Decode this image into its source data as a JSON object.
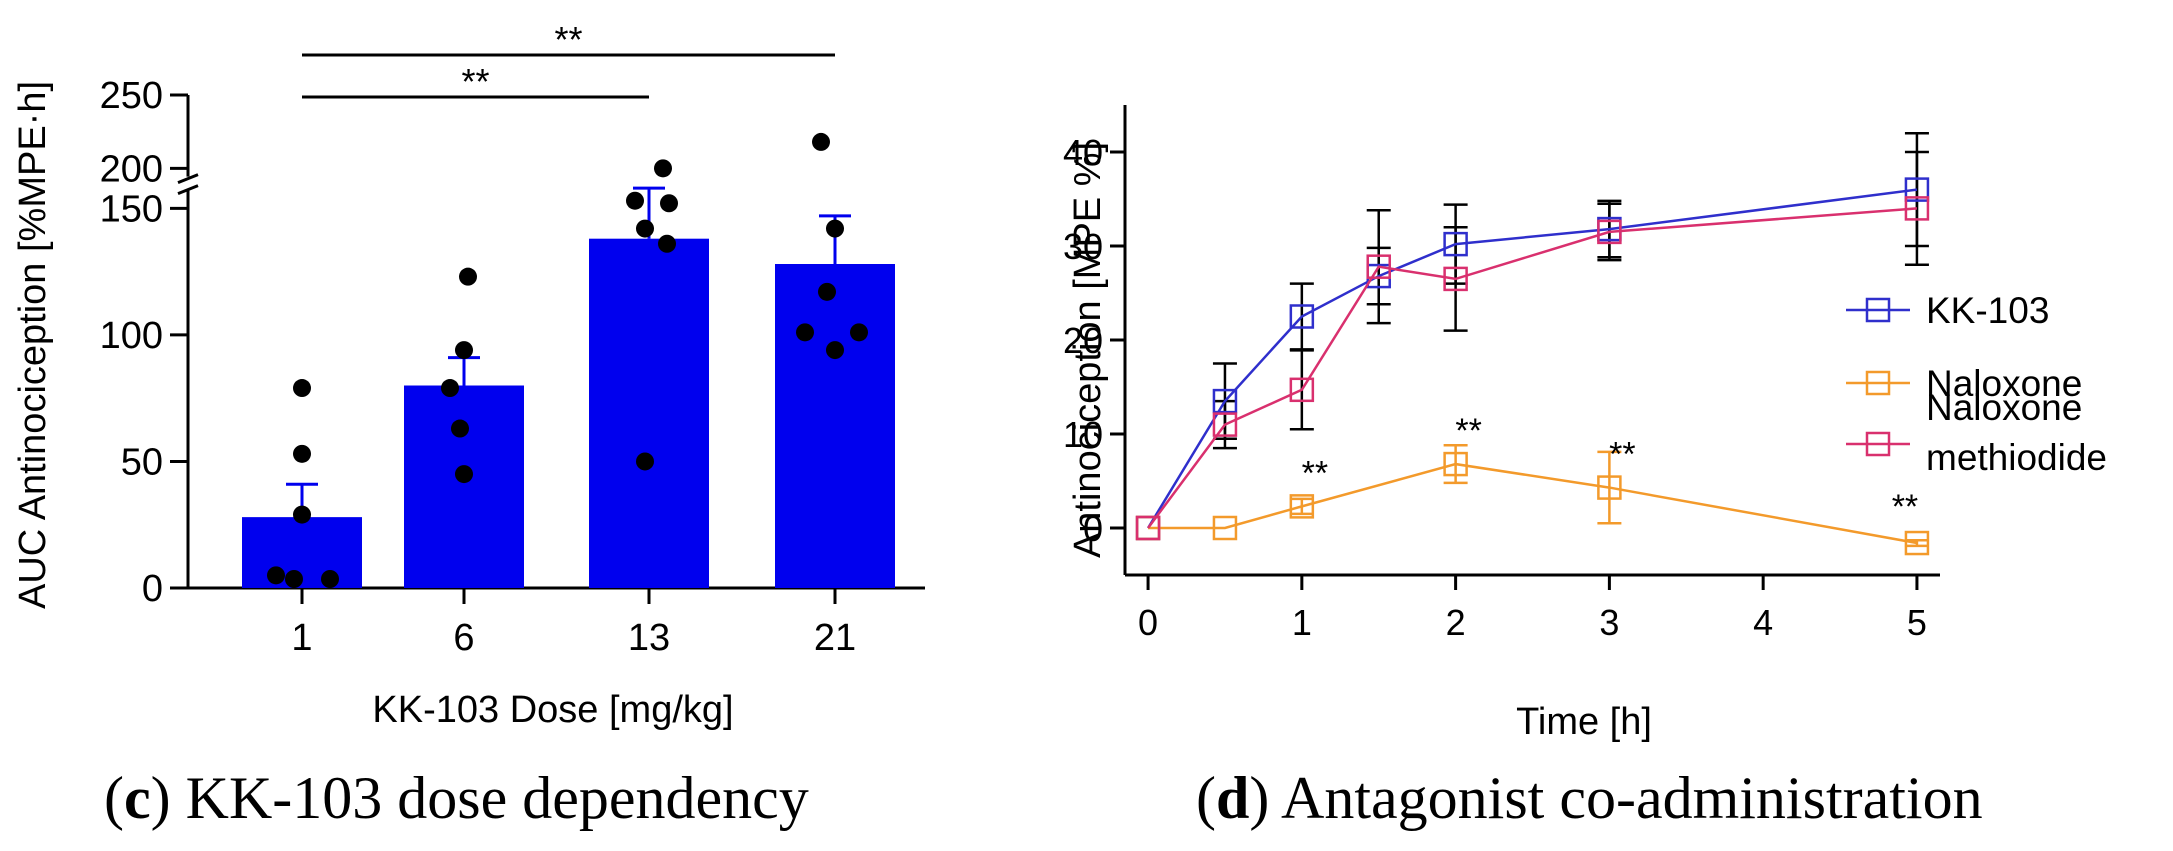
{
  "chart_data": [
    {
      "type": "bar",
      "title": "",
      "xlabel": "KK-103 Dose [mg/kg]",
      "ylabel": "AUC Antinociception [%MPE·h]",
      "categories": [
        "1",
        "6",
        "13",
        "21"
      ],
      "values": [
        28,
        80,
        138,
        128
      ],
      "error_upper": [
        41,
        91,
        158,
        147
      ],
      "points": [
        [
          79,
          53,
          29,
          5,
          1,
          1
        ],
        [
          123,
          94,
          79,
          63,
          45
        ],
        [
          200,
          153,
          152,
          142,
          136,
          50
        ],
        [
          218,
          142,
          117,
          101,
          101,
          94
        ]
      ],
      "y_ticks_lower": [
        0,
        50,
        100,
        150
      ],
      "y_ticks_upper": [
        200,
        250
      ],
      "y_tick_labels": [
        "0",
        "50",
        "100",
        "150",
        "200",
        "250"
      ],
      "ylim": [
        0,
        250
      ],
      "axis_break": [
        160,
        190
      ],
      "bar_color": "#0000ee",
      "significance": [
        {
          "from": "1",
          "to": "13",
          "label": "**"
        },
        {
          "from": "1",
          "to": "21",
          "label": "**"
        }
      ],
      "caption": {
        "letter": "c",
        "text": "KK-103 dose dependency"
      }
    },
    {
      "type": "line",
      "title": "",
      "xlabel": "Time [h]",
      "ylabel": "Antinociception [MPE %]",
      "xlim": [
        -0.15,
        5.15
      ],
      "ylim": [
        -5,
        45
      ],
      "x_ticks": [
        0,
        1,
        2,
        3,
        4,
        5
      ],
      "y_ticks": [
        0,
        10,
        20,
        30,
        40
      ],
      "series": [
        {
          "name": "KK-103",
          "color": "#2f2fcc",
          "x": [
            0,
            0.5,
            1,
            1.5,
            2,
            3,
            5
          ],
          "y": [
            0,
            13.5,
            22.5,
            26.8,
            30.2,
            31.8,
            36
          ],
          "err": [
            0,
            4.0,
            3.5,
            3.0,
            4.2,
            3.0,
            6.0
          ]
        },
        {
          "name": "Naloxone",
          "color": "#f39a2b",
          "x": [
            0,
            0.5,
            1,
            2,
            3,
            5
          ],
          "y": [
            0,
            0,
            2.3,
            6.8,
            4.3,
            -1.6
          ],
          "err": [
            0,
            0,
            0.8,
            2.0,
            3.8,
            0.3
          ]
        },
        {
          "name": "Naloxone methiodide",
          "color": "#d9306e",
          "legend_lines": [
            "Naloxone",
            "methiodide"
          ],
          "x": [
            0,
            0.5,
            1,
            1.5,
            2,
            3,
            5
          ],
          "y": [
            0,
            11,
            14.7,
            27.8,
            26.5,
            31.5,
            34
          ],
          "err": [
            0,
            2.5,
            4.2,
            6.0,
            5.5,
            3.0,
            6.0
          ]
        }
      ],
      "significance": [
        {
          "x": 1,
          "y": 2.3,
          "label": "**"
        },
        {
          "x": 2,
          "y": 6.8,
          "label": "**"
        },
        {
          "x": 3,
          "y": 4.3,
          "label": "**"
        },
        {
          "x": 5,
          "y": -1.6,
          "label": "**"
        }
      ],
      "legend_position": "right",
      "caption": {
        "letter": "d",
        "text": "Antagonist co-administration"
      }
    }
  ]
}
